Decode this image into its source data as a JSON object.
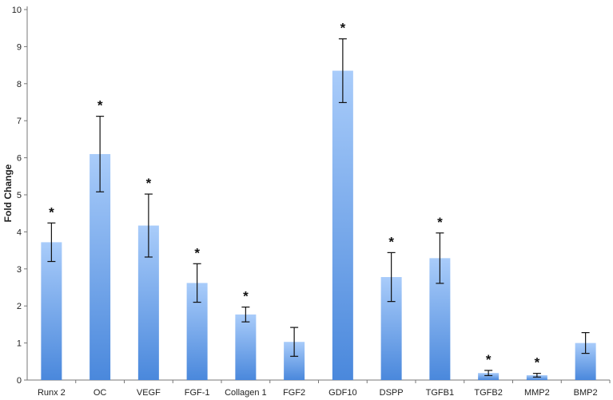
{
  "chart_data": {
    "type": "bar",
    "title": "",
    "xlabel": "",
    "ylabel": "Fold Change",
    "ylim": [
      0,
      10
    ],
    "yticks": [
      0,
      1,
      2,
      3,
      4,
      5,
      6,
      7,
      8,
      9,
      10
    ],
    "grid": false,
    "legend": "none",
    "bar_color": "#5b9bea",
    "categories": [
      "Runx 2",
      "OC",
      "VEGF",
      "FGF-1",
      "Collagen 1",
      "FGF2",
      "GDF10",
      "DSPP",
      "TGFB1",
      "TGFB2",
      "MMP2",
      "BMP2"
    ],
    "values": [
      3.72,
      6.1,
      4.17,
      2.62,
      1.77,
      1.03,
      8.35,
      2.78,
      3.29,
      0.19,
      0.13,
      1.0
    ],
    "error": [
      0.52,
      1.02,
      0.85,
      0.52,
      0.2,
      0.39,
      0.86,
      0.66,
      0.68,
      0.07,
      0.05,
      0.28
    ],
    "significant": [
      true,
      true,
      true,
      true,
      true,
      false,
      true,
      true,
      true,
      true,
      true,
      false
    ],
    "significance_marker": "*"
  }
}
